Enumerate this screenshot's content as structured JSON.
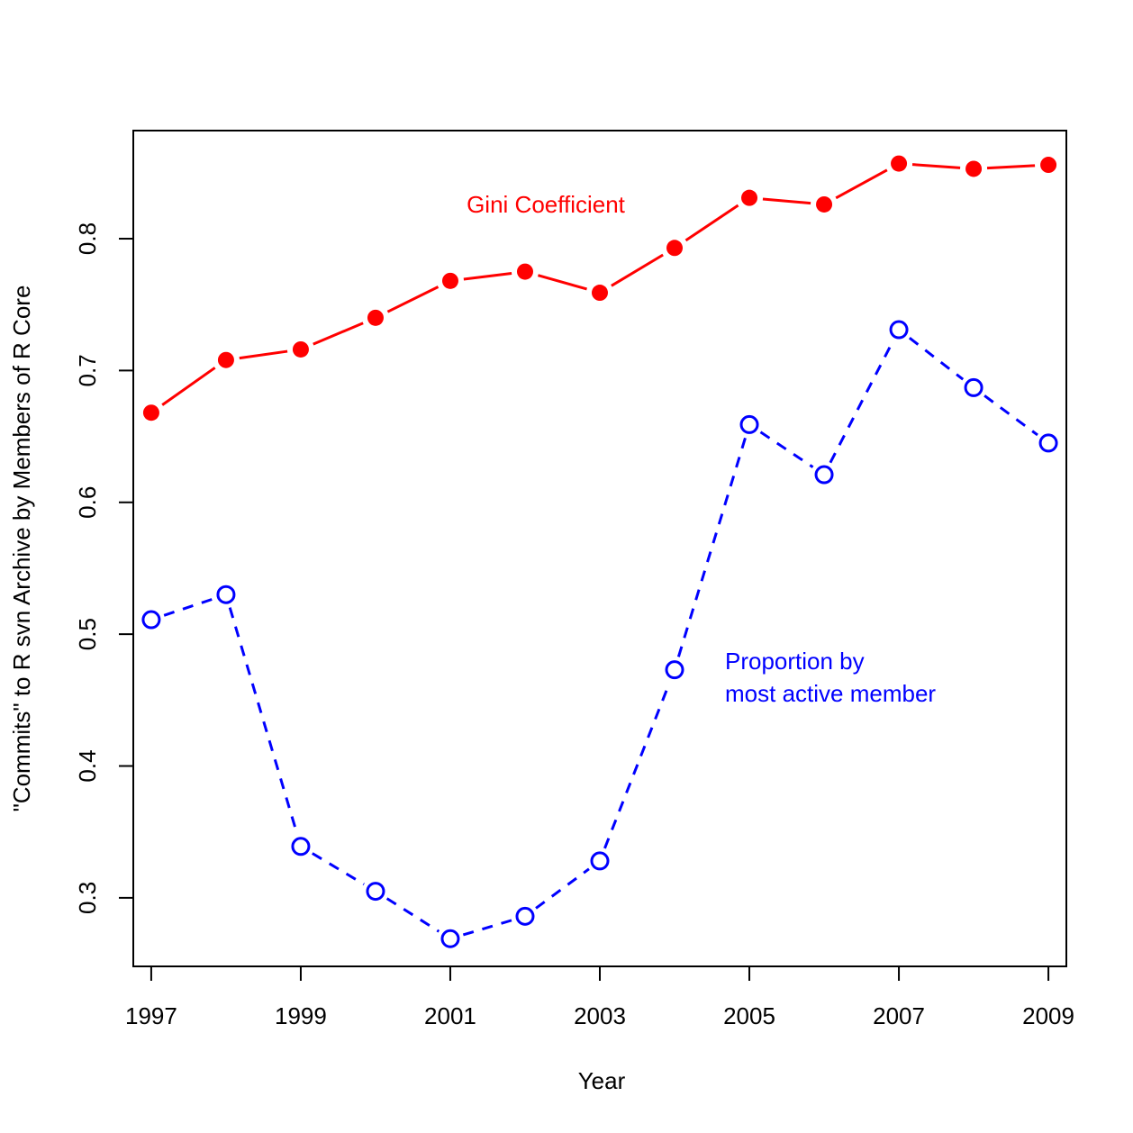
{
  "chart_data": {
    "type": "line",
    "title": "",
    "xlabel": "Year",
    "ylabel": "\"Commits\" to R svn Archive by Members of R Core",
    "x": [
      1997,
      1998,
      1999,
      2000,
      2001,
      2002,
      2003,
      2004,
      2005,
      2006,
      2007,
      2008,
      2009
    ],
    "xlim": [
      1996.76,
      2009.24
    ],
    "ylim": [
      0.248,
      0.882
    ],
    "x_ticks": [
      "1997",
      "1999",
      "2001",
      "2003",
      "2005",
      "2007",
      "2009"
    ],
    "y_ticks": [
      "0.3",
      "0.4",
      "0.5",
      "0.6",
      "0.7",
      "0.8"
    ],
    "grid": false,
    "legend": "none",
    "series": [
      {
        "name": "Gini Coefficient",
        "color": "#ff0000",
        "line_style": "solid",
        "marker": "filled-circle",
        "values": [
          0.668,
          0.708,
          0.716,
          0.74,
          0.768,
          0.775,
          0.759,
          0.793,
          0.831,
          0.826,
          0.857,
          0.853,
          0.856
        ]
      },
      {
        "name": "Proportion by most active member",
        "color": "#0000ff",
        "line_style": "dashed",
        "marker": "open-circle",
        "values": [
          0.511,
          0.53,
          0.339,
          0.305,
          0.269,
          0.286,
          0.328,
          0.473,
          0.659,
          0.621,
          0.731,
          0.687,
          0.645
        ]
      }
    ],
    "annotations": [
      {
        "text": "Gini Coefficient",
        "color": "#ff0000"
      },
      {
        "line1": "Proportion by",
        "line2": "most active member",
        "color": "#0000ff"
      }
    ]
  }
}
